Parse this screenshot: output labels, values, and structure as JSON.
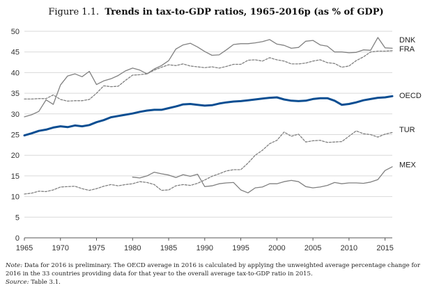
{
  "title": {
    "figure_label": "Figure 1.1.",
    "text": "Trends in tax-to-GDP ratios, 1965-2016p (as % of GDP)"
  },
  "notes": {
    "note_label": "Note:",
    "note_text": "Data for 2016 is preliminary. The OECD average in 2016 is calculated by applying the unweighted average percentage change for 2016 in the 33 countries providing data for that year to the overall average tax-to-GDP ratio in 2015.",
    "source_label": "Source:",
    "source_text": "Table 3.1."
  },
  "chart_data": {
    "type": "line",
    "title": "Trends in tax-to-GDP ratios, 1965-2016p (as % of GDP)",
    "xlabel": "",
    "ylabel": "",
    "xlim": [
      1965,
      2016
    ],
    "ylim": [
      0,
      50
    ],
    "xticks": [
      1965,
      1970,
      1975,
      1980,
      1985,
      1990,
      1995,
      2000,
      2005,
      2010,
      2015
    ],
    "yticks": [
      0,
      5,
      10,
      15,
      20,
      25,
      30,
      35,
      40,
      45,
      50
    ],
    "grid": "horizontal",
    "legend": "right (labels at line ends)",
    "series": [
      {
        "name": "DNK",
        "color": "#808080",
        "emphasis": false,
        "points": [
          [
            1965,
            29.3
          ],
          [
            1966,
            29.8
          ],
          [
            1967,
            30.6
          ],
          [
            1968,
            33.4
          ],
          [
            1969,
            32.3
          ],
          [
            1970,
            37.0
          ],
          [
            1971,
            39.2
          ],
          [
            1972,
            39.7
          ],
          [
            1973,
            39.0
          ],
          [
            1974,
            40.3
          ],
          [
            1975,
            37.1
          ],
          [
            1976,
            38.0
          ],
          [
            1977,
            38.5
          ],
          [
            1978,
            39.3
          ],
          [
            1979,
            40.4
          ],
          [
            1980,
            41.1
          ],
          [
            1981,
            40.6
          ],
          [
            1982,
            39.7
          ],
          [
            1983,
            40.9
          ],
          [
            1984,
            41.7
          ],
          [
            1985,
            42.9
          ],
          [
            1986,
            45.7
          ],
          [
            1987,
            46.7
          ],
          [
            1988,
            47.1
          ],
          [
            1989,
            46.2
          ],
          [
            1990,
            45.1
          ],
          [
            1991,
            44.2
          ],
          [
            1992,
            44.3
          ],
          [
            1993,
            45.5
          ],
          [
            1994,
            46.8
          ],
          [
            1995,
            47.0
          ],
          [
            1996,
            47.0
          ],
          [
            1997,
            47.2
          ],
          [
            1998,
            47.5
          ],
          [
            1999,
            48.0
          ],
          [
            2000,
            46.9
          ],
          [
            2001,
            46.6
          ],
          [
            2002,
            45.9
          ],
          [
            2003,
            46.1
          ],
          [
            2004,
            47.6
          ],
          [
            2005,
            47.8
          ],
          [
            2006,
            46.7
          ],
          [
            2007,
            46.4
          ],
          [
            2008,
            45.0
          ],
          [
            2009,
            45.0
          ],
          [
            2010,
            44.8
          ],
          [
            2011,
            44.9
          ],
          [
            2012,
            45.5
          ],
          [
            2013,
            45.4
          ],
          [
            2014,
            48.5
          ],
          [
            2015,
            46.0
          ],
          [
            2016,
            45.9
          ]
        ]
      },
      {
        "name": "FRA",
        "color": "#808080",
        "dashed": true,
        "emphasis": false,
        "points": [
          [
            1965,
            33.6
          ],
          [
            1966,
            33.6
          ],
          [
            1967,
            33.7
          ],
          [
            1968,
            33.7
          ],
          [
            1969,
            34.6
          ],
          [
            1970,
            33.5
          ],
          [
            1971,
            33.1
          ],
          [
            1972,
            33.2
          ],
          [
            1973,
            33.2
          ],
          [
            1974,
            33.5
          ],
          [
            1975,
            35.0
          ],
          [
            1976,
            36.8
          ],
          [
            1977,
            36.6
          ],
          [
            1978,
            36.7
          ],
          [
            1979,
            38.1
          ],
          [
            1980,
            39.4
          ],
          [
            1981,
            39.5
          ],
          [
            1982,
            39.7
          ],
          [
            1983,
            40.6
          ],
          [
            1984,
            41.3
          ],
          [
            1985,
            41.9
          ],
          [
            1986,
            41.7
          ],
          [
            1987,
            42.1
          ],
          [
            1988,
            41.6
          ],
          [
            1989,
            41.4
          ],
          [
            1990,
            41.2
          ],
          [
            1991,
            41.4
          ],
          [
            1992,
            41.1
          ],
          [
            1993,
            41.5
          ],
          [
            1994,
            42.0
          ],
          [
            1995,
            42.0
          ],
          [
            1996,
            43.0
          ],
          [
            1997,
            43.1
          ],
          [
            1998,
            42.8
          ],
          [
            1999,
            43.6
          ],
          [
            2000,
            43.1
          ],
          [
            2001,
            42.8
          ],
          [
            2002,
            42.1
          ],
          [
            2003,
            42.1
          ],
          [
            2004,
            42.3
          ],
          [
            2005,
            42.8
          ],
          [
            2006,
            43.1
          ],
          [
            2007,
            42.4
          ],
          [
            2008,
            42.2
          ],
          [
            2009,
            41.3
          ],
          [
            2010,
            41.6
          ],
          [
            2011,
            42.9
          ],
          [
            2012,
            43.8
          ],
          [
            2013,
            45.0
          ],
          [
            2014,
            45.2
          ],
          [
            2015,
            45.2
          ],
          [
            2016,
            45.3
          ]
        ]
      },
      {
        "name": "OECD",
        "color": "#0b4e92",
        "emphasis": true,
        "points": [
          [
            1965,
            24.8
          ],
          [
            1966,
            25.3
          ],
          [
            1967,
            25.9
          ],
          [
            1968,
            26.2
          ],
          [
            1969,
            26.7
          ],
          [
            1970,
            27.0
          ],
          [
            1971,
            26.8
          ],
          [
            1972,
            27.2
          ],
          [
            1973,
            27.0
          ],
          [
            1974,
            27.3
          ],
          [
            1975,
            28.0
          ],
          [
            1976,
            28.5
          ],
          [
            1977,
            29.2
          ],
          [
            1978,
            29.5
          ],
          [
            1979,
            29.8
          ],
          [
            1980,
            30.1
          ],
          [
            1981,
            30.5
          ],
          [
            1982,
            30.8
          ],
          [
            1983,
            31.0
          ],
          [
            1984,
            31.0
          ],
          [
            1985,
            31.4
          ],
          [
            1986,
            31.8
          ],
          [
            1987,
            32.3
          ],
          [
            1988,
            32.4
          ],
          [
            1989,
            32.2
          ],
          [
            1990,
            32.0
          ],
          [
            1991,
            32.1
          ],
          [
            1992,
            32.5
          ],
          [
            1993,
            32.8
          ],
          [
            1994,
            33.0
          ],
          [
            1995,
            33.1
          ],
          [
            1996,
            33.3
          ],
          [
            1997,
            33.5
          ],
          [
            1998,
            33.7
          ],
          [
            1999,
            33.9
          ],
          [
            2000,
            34.0
          ],
          [
            2001,
            33.5
          ],
          [
            2002,
            33.2
          ],
          [
            2003,
            33.1
          ],
          [
            2004,
            33.2
          ],
          [
            2005,
            33.6
          ],
          [
            2006,
            33.8
          ],
          [
            2007,
            33.8
          ],
          [
            2008,
            33.2
          ],
          [
            2009,
            32.2
          ],
          [
            2010,
            32.4
          ],
          [
            2011,
            32.8
          ],
          [
            2012,
            33.3
          ],
          [
            2013,
            33.6
          ],
          [
            2014,
            33.9
          ],
          [
            2015,
            34.0
          ],
          [
            2016,
            34.3
          ]
        ]
      },
      {
        "name": "TUR",
        "color": "#808080",
        "dashed": true,
        "emphasis": false,
        "points": [
          [
            1965,
            10.6
          ],
          [
            1966,
            10.8
          ],
          [
            1967,
            11.3
          ],
          [
            1968,
            11.2
          ],
          [
            1969,
            11.6
          ],
          [
            1970,
            12.3
          ],
          [
            1971,
            12.4
          ],
          [
            1972,
            12.5
          ],
          [
            1973,
            11.9
          ],
          [
            1974,
            11.5
          ],
          [
            1975,
            11.9
          ],
          [
            1976,
            12.5
          ],
          [
            1977,
            12.9
          ],
          [
            1978,
            12.6
          ],
          [
            1979,
            12.9
          ],
          [
            1980,
            13.1
          ],
          [
            1981,
            13.6
          ],
          [
            1982,
            13.4
          ],
          [
            1983,
            12.9
          ],
          [
            1984,
            11.5
          ],
          [
            1985,
            11.6
          ],
          [
            1986,
            12.6
          ],
          [
            1987,
            12.9
          ],
          [
            1988,
            12.7
          ],
          [
            1989,
            13.2
          ],
          [
            1990,
            14.0
          ],
          [
            1991,
            14.9
          ],
          [
            1992,
            15.5
          ],
          [
            1993,
            16.2
          ],
          [
            1994,
            16.5
          ],
          [
            1995,
            16.5
          ],
          [
            1996,
            18.1
          ],
          [
            1997,
            20.0
          ],
          [
            1998,
            21.2
          ],
          [
            1999,
            22.8
          ],
          [
            2000,
            23.6
          ],
          [
            2001,
            25.6
          ],
          [
            2002,
            24.6
          ],
          [
            2003,
            25.1
          ],
          [
            2004,
            23.2
          ],
          [
            2005,
            23.5
          ],
          [
            2006,
            23.6
          ],
          [
            2007,
            23.1
          ],
          [
            2008,
            23.2
          ],
          [
            2009,
            23.3
          ],
          [
            2010,
            24.6
          ],
          [
            2011,
            25.9
          ],
          [
            2012,
            25.2
          ],
          [
            2013,
            25.0
          ],
          [
            2014,
            24.4
          ],
          [
            2015,
            25.1
          ],
          [
            2016,
            25.5
          ]
        ]
      },
      {
        "name": "MEX",
        "color": "#808080",
        "emphasis": false,
        "points": [
          [
            1980,
            14.7
          ],
          [
            1981,
            14.5
          ],
          [
            1982,
            15.0
          ],
          [
            1983,
            15.9
          ],
          [
            1984,
            15.5
          ],
          [
            1985,
            15.2
          ],
          [
            1986,
            14.6
          ],
          [
            1987,
            15.3
          ],
          [
            1988,
            14.9
          ],
          [
            1989,
            15.4
          ],
          [
            1990,
            12.4
          ],
          [
            1991,
            12.6
          ],
          [
            1992,
            13.1
          ],
          [
            1993,
            13.3
          ],
          [
            1994,
            13.4
          ],
          [
            1995,
            11.6
          ],
          [
            1996,
            10.9
          ],
          [
            1997,
            12.1
          ],
          [
            1998,
            12.3
          ],
          [
            1999,
            13.1
          ],
          [
            2000,
            13.1
          ],
          [
            2001,
            13.6
          ],
          [
            2002,
            13.9
          ],
          [
            2003,
            13.6
          ],
          [
            2004,
            12.4
          ],
          [
            2005,
            12.1
          ],
          [
            2006,
            12.3
          ],
          [
            2007,
            12.7
          ],
          [
            2008,
            13.4
          ],
          [
            2009,
            13.1
          ],
          [
            2010,
            13.3
          ],
          [
            2011,
            13.3
          ],
          [
            2012,
            13.2
          ],
          [
            2013,
            13.5
          ],
          [
            2014,
            14.1
          ],
          [
            2015,
            16.3
          ],
          [
            2016,
            17.2
          ]
        ]
      }
    ]
  }
}
